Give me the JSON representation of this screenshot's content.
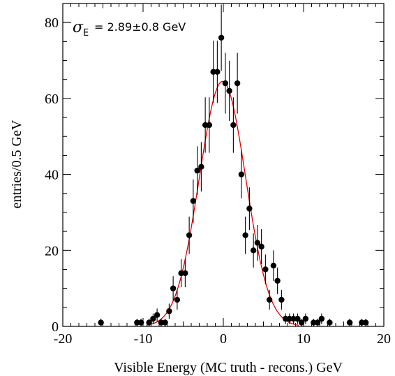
{
  "chart_data": {
    "type": "scatter",
    "xlabel": "Visible Energy (MC truth - recons.)  GeV",
    "ylabel": "entries/0.5 GeV",
    "xlim": [
      -20,
      20
    ],
    "ylim": [
      0,
      85
    ],
    "xticks": [
      -20,
      -10,
      0,
      10,
      20
    ],
    "yticks": [
      0,
      20,
      40,
      60,
      80
    ],
    "grid": false,
    "annotation": {
      "symbol": "σ",
      "subscript": "E",
      "text": "= 2.89±0.8 GeV"
    },
    "series": [
      {
        "marker": "circle",
        "color": "#000000",
        "x": [
          -15.25,
          -10.75,
          -10.25,
          -9.25,
          -8.75,
          -8.25,
          -7.75,
          -7.25,
          -6.75,
          -6.25,
          -5.75,
          -5.25,
          -4.75,
          -4.25,
          -3.75,
          -3.25,
          -2.75,
          -2.25,
          -1.75,
          -1.25,
          -0.75,
          -0.25,
          0.25,
          0.75,
          1.25,
          1.75,
          2.25,
          2.75,
          3.25,
          3.75,
          4.25,
          4.75,
          5.25,
          5.75,
          6.25,
          6.75,
          7.25,
          7.75,
          8.25,
          8.75,
          9.25,
          9.75,
          10.25,
          11.25,
          11.75,
          12.25,
          13.25,
          15.75,
          17.25,
          17.75
        ],
        "y": [
          1,
          1,
          1,
          1,
          2,
          3,
          1,
          1,
          4,
          10,
          7,
          14,
          14,
          24,
          33,
          41,
          42,
          53,
          53,
          67,
          67,
          76,
          64,
          62,
          53,
          64,
          40,
          24,
          31,
          20,
          22,
          21,
          15,
          7,
          16,
          12,
          7,
          2,
          2,
          2,
          2,
          1,
          2,
          1,
          1,
          2,
          1,
          1,
          1,
          1
        ],
        "yerr": [
          1,
          1,
          1,
          1,
          1.4,
          1.7,
          1,
          1,
          2,
          3.2,
          2.6,
          3.7,
          3.7,
          4.9,
          5.7,
          6.4,
          6.5,
          7.3,
          7.3,
          8.2,
          8.2,
          8.7,
          8,
          7.9,
          7.3,
          8,
          6.3,
          4.9,
          5.6,
          4.5,
          4.7,
          4.6,
          3.9,
          2.6,
          4,
          3.5,
          2.6,
          1.4,
          1.4,
          1.4,
          1.4,
          1,
          1.4,
          1,
          1,
          1.4,
          1,
          1,
          1,
          1
        ]
      },
      {
        "type": "line",
        "color": "#e00000",
        "fit": "gaussian",
        "amplitude": 64.5,
        "mean": -0.1,
        "sigma": 2.89,
        "range": [
          -9.6,
          9.4
        ]
      }
    ]
  }
}
